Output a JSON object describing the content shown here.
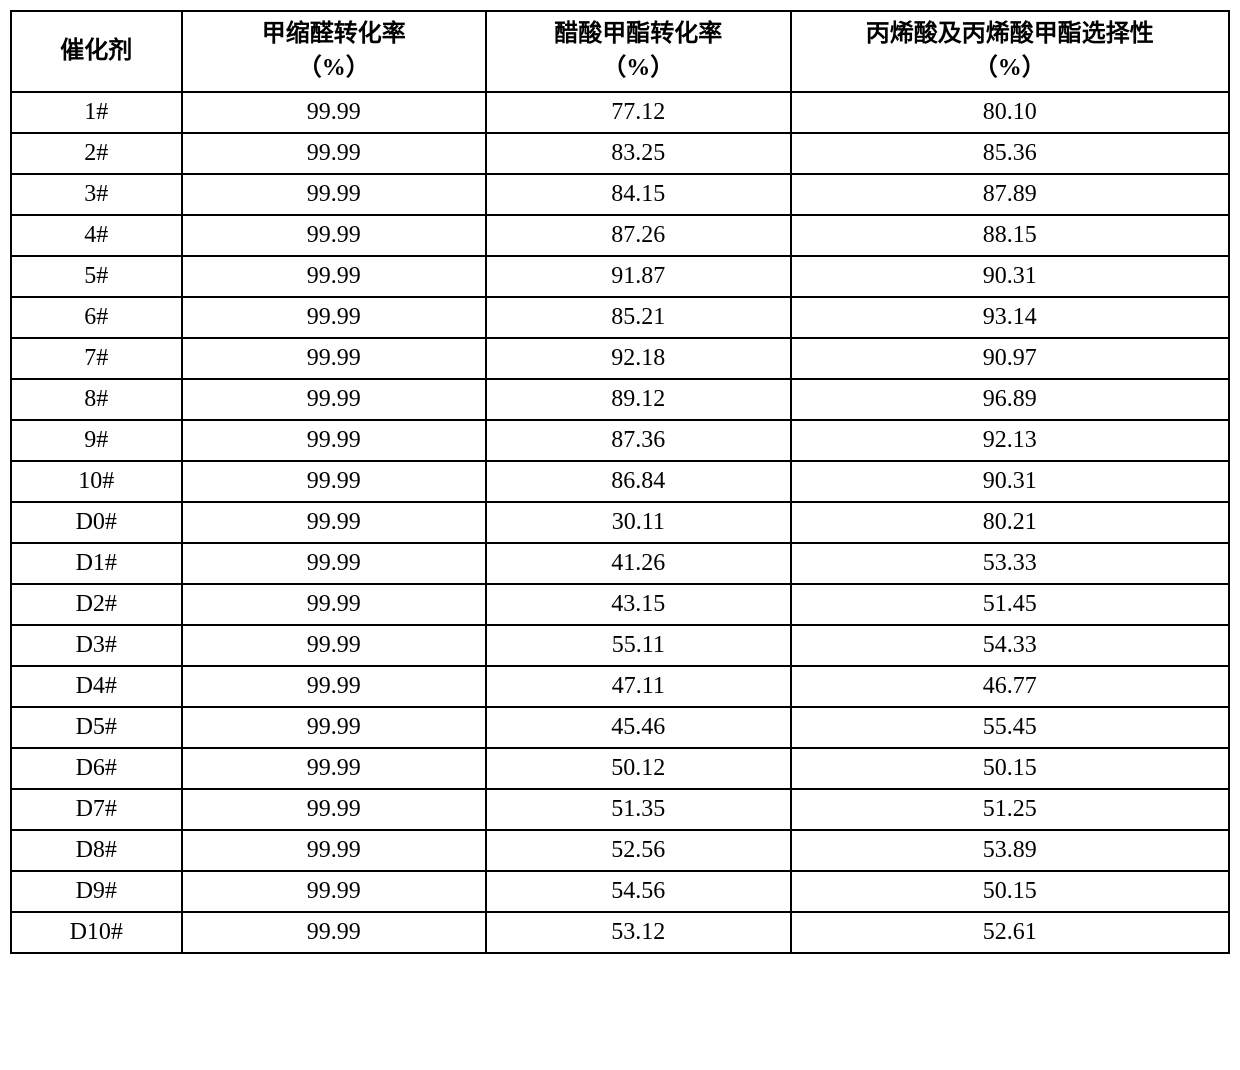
{
  "table": {
    "type": "table",
    "background_color": "#ffffff",
    "border_color": "#000000",
    "border_width": 2,
    "text_color": "#000000",
    "cell_fontsize": 24,
    "header_fontweight": "bold",
    "font_family": "SimSun, Times New Roman, serif",
    "columns": [
      {
        "key": "catalyst",
        "header_line1": "催化剂",
        "header_line2": "",
        "width_percent": 14,
        "align": "center"
      },
      {
        "key": "conv1",
        "header_line1": "甲缩醛转化率",
        "header_line2": "（%）",
        "width_percent": 25,
        "align": "center"
      },
      {
        "key": "conv2",
        "header_line1": "醋酸甲酯转化率",
        "header_line2": "（%）",
        "width_percent": 25,
        "align": "center"
      },
      {
        "key": "sel",
        "header_line1": "丙烯酸及丙烯酸甲酯选择性",
        "header_line2": "（%）",
        "width_percent": 36,
        "align": "center"
      }
    ],
    "rows": [
      {
        "catalyst": "1#",
        "conv1": "99.99",
        "conv2": "77.12",
        "sel": "80.10"
      },
      {
        "catalyst": "2#",
        "conv1": "99.99",
        "conv2": "83.25",
        "sel": "85.36"
      },
      {
        "catalyst": "3#",
        "conv1": "99.99",
        "conv2": "84.15",
        "sel": "87.89"
      },
      {
        "catalyst": "4#",
        "conv1": "99.99",
        "conv2": "87.26",
        "sel": "88.15"
      },
      {
        "catalyst": "5#",
        "conv1": "99.99",
        "conv2": "91.87",
        "sel": "90.31"
      },
      {
        "catalyst": "6#",
        "conv1": "99.99",
        "conv2": "85.21",
        "sel": "93.14"
      },
      {
        "catalyst": "7#",
        "conv1": "99.99",
        "conv2": "92.18",
        "sel": "90.97"
      },
      {
        "catalyst": "8#",
        "conv1": "99.99",
        "conv2": "89.12",
        "sel": "96.89"
      },
      {
        "catalyst": "9#",
        "conv1": "99.99",
        "conv2": "87.36",
        "sel": "92.13"
      },
      {
        "catalyst": "10#",
        "conv1": "99.99",
        "conv2": "86.84",
        "sel": "90.31"
      },
      {
        "catalyst": "D0#",
        "conv1": "99.99",
        "conv2": "30.11",
        "sel": "80.21"
      },
      {
        "catalyst": "D1#",
        "conv1": "99.99",
        "conv2": "41.26",
        "sel": "53.33"
      },
      {
        "catalyst": "D2#",
        "conv1": "99.99",
        "conv2": "43.15",
        "sel": "51.45"
      },
      {
        "catalyst": "D3#",
        "conv1": "99.99",
        "conv2": "55.11",
        "sel": "54.33"
      },
      {
        "catalyst": "D4#",
        "conv1": "99.99",
        "conv2": "47.11",
        "sel": "46.77"
      },
      {
        "catalyst": "D5#",
        "conv1": "99.99",
        "conv2": "45.46",
        "sel": "55.45"
      },
      {
        "catalyst": "D6#",
        "conv1": "99.99",
        "conv2": "50.12",
        "sel": "50.15"
      },
      {
        "catalyst": "D7#",
        "conv1": "99.99",
        "conv2": "51.35",
        "sel": "51.25"
      },
      {
        "catalyst": "D8#",
        "conv1": "99.99",
        "conv2": "52.56",
        "sel": "53.89"
      },
      {
        "catalyst": "D9#",
        "conv1": "99.99",
        "conv2": "54.56",
        "sel": "50.15"
      },
      {
        "catalyst": "D10#",
        "conv1": "99.99",
        "conv2": "53.12",
        "sel": "52.61"
      }
    ]
  }
}
